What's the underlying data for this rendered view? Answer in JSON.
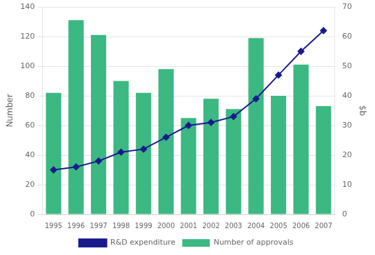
{
  "chart_data": {
    "type": "bar",
    "categories": [
      "1995",
      "1996",
      "1997",
      "1998",
      "1999",
      "2000",
      "2001",
      "2002",
      "2003",
      "2004",
      "2005",
      "2006",
      "2007"
    ],
    "series": [
      {
        "name": "Number of approvals",
        "type": "bar",
        "color": "#3cb882",
        "values": [
          82,
          131,
          121,
          90,
          82,
          98,
          65,
          78,
          71,
          119,
          80,
          101,
          73
        ]
      },
      {
        "name": "R&D expenditure",
        "type": "line",
        "axis": "y2",
        "color": "#1a1a8c",
        "marker": "diamond",
        "values": [
          15,
          16,
          18,
          21,
          22,
          26,
          30,
          31,
          33,
          39,
          47,
          55,
          62
        ]
      }
    ],
    "ylabel": "Number",
    "y2label": "$b",
    "ylim": [
      0,
      140
    ],
    "yticks": [
      0,
      20,
      40,
      60,
      80,
      100,
      120,
      140
    ],
    "y2lim": [
      0,
      70
    ],
    "y2ticks": [
      0,
      10,
      20,
      30,
      40,
      50,
      60,
      70
    ],
    "grid": true,
    "legend": "bottom"
  }
}
